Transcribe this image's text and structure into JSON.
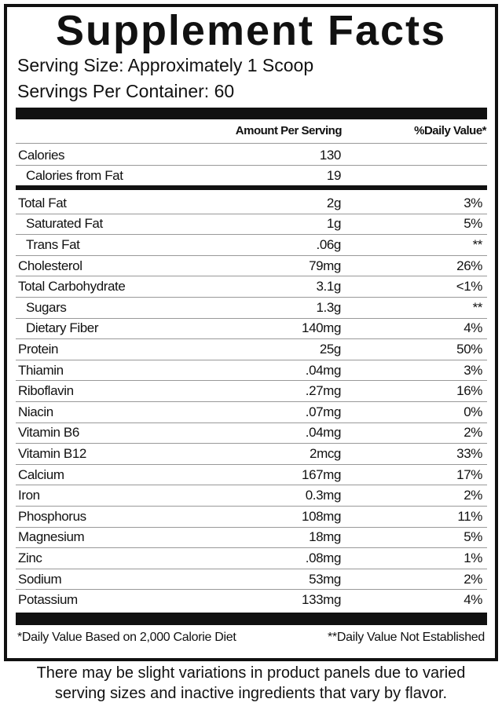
{
  "header": {
    "title": "Supplement Facts",
    "serving_size": "Serving Size: Approximately 1 Scoop",
    "servings_per_container": "Servings Per Container: 60"
  },
  "table": {
    "columns": [
      "Amount Per Serving",
      "%Daily Value*"
    ],
    "top_rows": [
      {
        "name": "Calories",
        "amount": "130"
      },
      {
        "name": "Calories from Fat",
        "amount": "19",
        "sub": true
      }
    ],
    "rows": [
      {
        "name": "Total Fat",
        "amount": "2g",
        "dv": "3%"
      },
      {
        "name": "Saturated Fat",
        "amount": "1g",
        "dv": "5%",
        "sub": true
      },
      {
        "name": "Trans Fat",
        "amount": ".06g",
        "dv": "**",
        "sub": true
      },
      {
        "name": "Cholesterol",
        "amount": "79mg",
        "dv": "26%"
      },
      {
        "name": "Total Carbohydrate",
        "amount": "3.1g",
        "dv": "<1%"
      },
      {
        "name": "Sugars",
        "amount": "1.3g",
        "dv": "**",
        "sub": true
      },
      {
        "name": "Dietary Fiber",
        "amount": "140mg",
        "dv": "4%",
        "sub": true
      },
      {
        "name": "Protein",
        "amount": "25g",
        "dv": "50%"
      },
      {
        "name": "Thiamin",
        "amount": ".04mg",
        "dv": "3%"
      },
      {
        "name": "Riboflavin",
        "amount": ".27mg",
        "dv": "16%"
      },
      {
        "name": "Niacin",
        "amount": ".07mg",
        "dv": "0%"
      },
      {
        "name": "Vitamin B6",
        "amount": ".04mg",
        "dv": "2%"
      },
      {
        "name": "Vitamin B12",
        "amount": "2mcg",
        "dv": "33%"
      },
      {
        "name": "Calcium",
        "amount": "167mg",
        "dv": "17%"
      },
      {
        "name": "Iron",
        "amount": "0.3mg",
        "dv": "2%"
      },
      {
        "name": "Phosphorus",
        "amount": "108mg",
        "dv": "11%"
      },
      {
        "name": "Magnesium",
        "amount": "18mg",
        "dv": "5%"
      },
      {
        "name": "Zinc",
        "amount": ".08mg",
        "dv": "1%"
      },
      {
        "name": "Sodium",
        "amount": "53mg",
        "dv": "2%"
      },
      {
        "name": "Potassium",
        "amount": "133mg",
        "dv": "4%"
      }
    ]
  },
  "footnotes": {
    "left": "*Daily Value Based on 2,000 Calorie Diet",
    "right": "**Daily Value Not Established"
  },
  "note": [
    "There may be slight variations in product panels due to varied",
    "serving sizes and inactive ingredients that vary by flavor."
  ]
}
